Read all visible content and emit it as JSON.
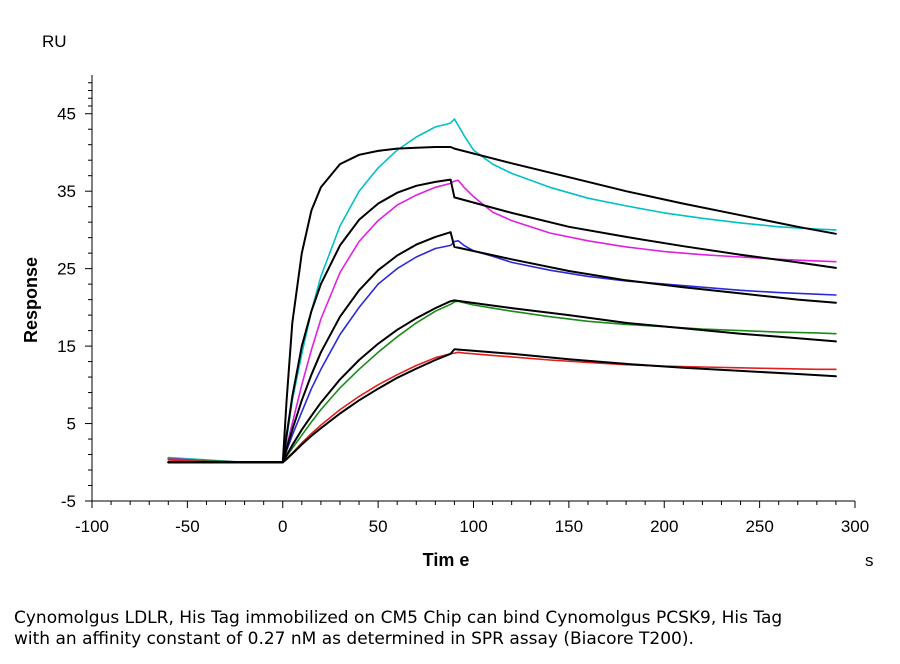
{
  "chart_data": {
    "type": "line",
    "ylabel": "Response",
    "yunit": "RU",
    "xlabel": "Tim e",
    "xunit": "s",
    "xlim": [
      -100,
      300
    ],
    "ylim": [
      -5,
      50
    ],
    "xticks": [
      -100,
      -50,
      0,
      50,
      100,
      150,
      200,
      250,
      300
    ],
    "yticks": [
      -5,
      5,
      15,
      25,
      35,
      45
    ],
    "grid": false,
    "series": [
      {
        "color": "#00c0c8",
        "kind": "measured",
        "x": [
          -60,
          -40,
          -20,
          0,
          2,
          5,
          10,
          15,
          20,
          30,
          40,
          50,
          60,
          70,
          80,
          85,
          88,
          90,
          92,
          95,
          100,
          110,
          120,
          140,
          160,
          180,
          200,
          220,
          240,
          260,
          280,
          290
        ],
        "y": [
          0.6,
          0.3,
          0,
          0,
          3,
          8,
          14,
          19.5,
          24,
          30.5,
          35,
          38,
          40.3,
          42,
          43.3,
          43.6,
          43.8,
          44.3,
          43.5,
          42.2,
          40.3,
          38.5,
          37.3,
          35.5,
          34.1,
          33.1,
          32.2,
          31.5,
          30.9,
          30.4,
          30.1,
          30.0
        ]
      },
      {
        "color": "#e020e0",
        "kind": "measured",
        "x": [
          -60,
          -40,
          -20,
          0,
          2,
          5,
          10,
          15,
          20,
          30,
          40,
          50,
          60,
          70,
          80,
          88,
          90,
          92,
          95,
          100,
          110,
          120,
          140,
          160,
          180,
          200,
          220,
          240,
          260,
          280,
          290
        ],
        "y": [
          0.5,
          0.2,
          0,
          0,
          2,
          5,
          10,
          14.5,
          18.5,
          24.5,
          28.5,
          31.2,
          33.2,
          34.5,
          35.5,
          36.0,
          36.3,
          36.4,
          35.5,
          34.3,
          32.3,
          31.2,
          29.6,
          28.6,
          27.8,
          27.2,
          26.8,
          26.5,
          26.2,
          26.0,
          25.9
        ]
      },
      {
        "color": "#2a2ad8",
        "kind": "measured",
        "x": [
          -60,
          -40,
          -20,
          0,
          2,
          5,
          10,
          15,
          20,
          30,
          40,
          50,
          60,
          70,
          80,
          88,
          90,
          92,
          95,
          100,
          110,
          120,
          140,
          160,
          180,
          200,
          220,
          240,
          260,
          280,
          290
        ],
        "y": [
          0.4,
          0.2,
          0,
          0,
          1.5,
          3.5,
          6.5,
          9.5,
          12,
          16.5,
          20,
          23,
          25,
          26.5,
          27.6,
          28.0,
          28.5,
          28.6,
          28.0,
          27.3,
          26.6,
          25.8,
          24.8,
          24.0,
          23.4,
          23.0,
          22.6,
          22.2,
          21.9,
          21.7,
          21.6
        ]
      },
      {
        "color": "#1a8a1a",
        "kind": "measured",
        "x": [
          -60,
          -40,
          -20,
          0,
          2,
          5,
          10,
          15,
          20,
          30,
          40,
          50,
          60,
          70,
          80,
          88,
          90,
          92,
          95,
          100,
          110,
          120,
          140,
          160,
          180,
          200,
          220,
          240,
          260,
          280,
          290
        ],
        "y": [
          0.4,
          0.2,
          0,
          0,
          0.8,
          1.8,
          3.5,
          5.2,
          6.8,
          9.6,
          12,
          14.2,
          16.2,
          18,
          19.5,
          20.4,
          20.7,
          20.8,
          20.6,
          20.3,
          19.9,
          19.5,
          18.8,
          18.2,
          17.8,
          17.5,
          17.2,
          17.0,
          16.8,
          16.7,
          16.6
        ]
      },
      {
        "color": "#e02020",
        "kind": "measured",
        "x": [
          -60,
          -40,
          -20,
          0,
          2,
          5,
          10,
          15,
          20,
          30,
          40,
          50,
          60,
          70,
          80,
          88,
          90,
          92,
          95,
          100,
          110,
          120,
          140,
          160,
          180,
          200,
          220,
          240,
          260,
          280,
          290
        ],
        "y": [
          0.3,
          0.1,
          0,
          0,
          0.5,
          1.2,
          2.5,
          3.7,
          4.8,
          6.8,
          8.5,
          10,
          11.3,
          12.5,
          13.5,
          14.0,
          14.1,
          14.2,
          14.1,
          14.0,
          13.8,
          13.6,
          13.2,
          12.9,
          12.6,
          12.4,
          12.3,
          12.2,
          12.1,
          12.0,
          12.0
        ]
      },
      {
        "color": "#000000",
        "kind": "fit",
        "x": [
          -60,
          0,
          2,
          5,
          10,
          15,
          20,
          30,
          40,
          50,
          60,
          70,
          80,
          88,
          90,
          120,
          150,
          180,
          210,
          240,
          270,
          290
        ],
        "y": [
          0,
          0,
          8,
          18,
          27,
          32.5,
          35.5,
          38.5,
          39.7,
          40.2,
          40.5,
          40.6,
          40.7,
          40.7,
          40.5,
          38.6,
          36.8,
          35.0,
          33.4,
          31.9,
          30.4,
          29.5
        ]
      },
      {
        "color": "#000000",
        "kind": "fit",
        "x": [
          -60,
          0,
          2,
          5,
          10,
          15,
          20,
          30,
          40,
          50,
          60,
          70,
          80,
          88,
          90,
          120,
          150,
          180,
          210,
          240,
          270,
          290
        ],
        "y": [
          0,
          0,
          3.5,
          8.5,
          15,
          19.5,
          23,
          28,
          31.3,
          33.4,
          34.8,
          35.7,
          36.2,
          36.5,
          34.2,
          32.2,
          30.4,
          29.1,
          27.9,
          26.8,
          25.8,
          25.1
        ]
      },
      {
        "color": "#000000",
        "kind": "fit",
        "x": [
          -60,
          0,
          2,
          5,
          10,
          15,
          20,
          30,
          40,
          50,
          60,
          70,
          80,
          88,
          90,
          120,
          150,
          180,
          210,
          240,
          270,
          290
        ],
        "y": [
          0,
          0,
          1.8,
          4.2,
          8,
          11.3,
          14.2,
          18.8,
          22.2,
          24.8,
          26.7,
          28.1,
          29.1,
          29.7,
          27.8,
          26.2,
          24.7,
          23.5,
          22.6,
          21.8,
          21.0,
          20.6
        ]
      },
      {
        "color": "#000000",
        "kind": "fit",
        "x": [
          -60,
          0,
          2,
          5,
          10,
          15,
          20,
          30,
          40,
          50,
          60,
          70,
          80,
          88,
          90,
          120,
          150,
          180,
          210,
          240,
          270,
          290
        ],
        "y": [
          0,
          0,
          0.9,
          2.2,
          4.2,
          6,
          7.7,
          10.7,
          13.2,
          15.3,
          17.1,
          18.6,
          19.9,
          20.8,
          20.9,
          19.9,
          19.0,
          18.0,
          17.3,
          16.6,
          16.0,
          15.6
        ]
      },
      {
        "color": "#000000",
        "kind": "fit",
        "x": [
          -60,
          0,
          2,
          5,
          10,
          15,
          20,
          30,
          40,
          50,
          60,
          70,
          80,
          88,
          90,
          120,
          150,
          180,
          210,
          240,
          270,
          290
        ],
        "y": [
          0,
          0,
          0.4,
          1.1,
          2.3,
          3.4,
          4.4,
          6.3,
          8,
          9.5,
          10.9,
          12.1,
          13.2,
          14.0,
          14.6,
          14.0,
          13.3,
          12.7,
          12.2,
          11.8,
          11.4,
          11.1
        ]
      }
    ]
  },
  "caption": {
    "line1": "Cynomolgus LDLR, His Tag immobilized on CM5 Chip can bind Cynomolgus PCSK9, His Tag",
    "line2": "with an affinity constant of 0.27 nM as determined in SPR assay (Biacore T200)."
  }
}
